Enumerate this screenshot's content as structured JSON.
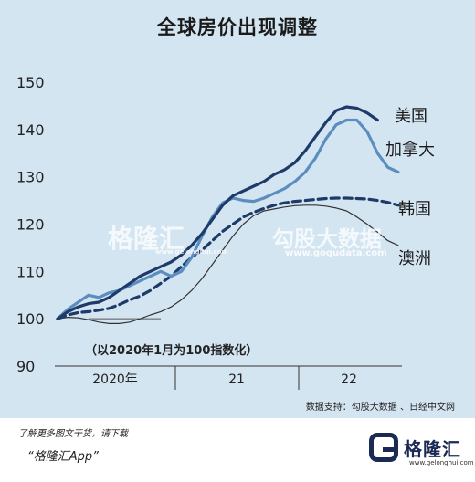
{
  "header": {
    "title": "全球房价出现调整"
  },
  "chart_data": {
    "type": "line",
    "title": "全球房价出现调整",
    "annotation": "（以2020年1月为100指数化）",
    "xlabel": "",
    "ylabel": "",
    "x_tick_labels": [
      "2020年",
      "21",
      "22"
    ],
    "ylim": [
      90,
      150
    ],
    "yticks": [
      90,
      100,
      110,
      120,
      130,
      140,
      150
    ],
    "grid": false,
    "legend": "inline-right",
    "x": [
      "2020-01",
      "2020-02",
      "2020-03",
      "2020-04",
      "2020-05",
      "2020-06",
      "2020-07",
      "2020-08",
      "2020-09",
      "2020-10",
      "2020-11",
      "2020-12",
      "2021-01",
      "2021-02",
      "2021-03",
      "2021-04",
      "2021-05",
      "2021-06",
      "2021-07",
      "2021-08",
      "2021-09",
      "2021-10",
      "2021-11",
      "2021-12",
      "2022-01",
      "2022-02",
      "2022-03",
      "2022-04",
      "2022-05",
      "2022-06",
      "2022-07",
      "2022-08",
      "2022-09",
      "2022-10"
    ],
    "series": [
      {
        "name": "美国",
        "color": "#1e3a68",
        "style": "solid-thick",
        "values": [
          100,
          101.5,
          102.5,
          103.2,
          103.5,
          104.5,
          106.0,
          107.5,
          109.0,
          110.0,
          111.0,
          112.0,
          113.5,
          115.5,
          118.0,
          121.0,
          124.0,
          126.0,
          127.0,
          128.0,
          129.0,
          130.5,
          131.5,
          133.0,
          135.5,
          138.5,
          141.5,
          144.0,
          144.8,
          144.5,
          143.5,
          142.0,
          null,
          null
        ]
      },
      {
        "name": "加拿大",
        "color": "#5b8dbf",
        "style": "solid-thick",
        "values": [
          100,
          102.0,
          103.5,
          105.0,
          104.5,
          105.5,
          106.0,
          107.0,
          108.0,
          109.0,
          110.0,
          109.0,
          110.0,
          113.0,
          117.5,
          121.5,
          124.5,
          125.5,
          125.0,
          124.8,
          125.5,
          126.5,
          127.5,
          129.0,
          131.0,
          134.0,
          138.0,
          141.0,
          142.0,
          142.0,
          139.5,
          135.0,
          132.0,
          131.0
        ]
      },
      {
        "name": "韩国",
        "color": "#1e3a68",
        "style": "dashed",
        "values": [
          100,
          100.8,
          101.3,
          101.5,
          101.8,
          102.2,
          103.0,
          104.0,
          104.8,
          106.0,
          107.5,
          109.0,
          111.0,
          113.0,
          114.5,
          116.5,
          118.5,
          120.0,
          121.5,
          122.5,
          123.3,
          124.0,
          124.5,
          124.8,
          125.0,
          125.2,
          125.4,
          125.5,
          125.5,
          125.4,
          125.3,
          125.0,
          124.6,
          124.0
        ]
      },
      {
        "name": "澳洲",
        "color": "#333333",
        "style": "solid-thin",
        "values": [
          100,
          100.3,
          100.2,
          99.8,
          99.3,
          99.0,
          99.0,
          99.3,
          100.0,
          100.8,
          101.5,
          102.5,
          104.0,
          106.0,
          108.5,
          111.5,
          114.5,
          117.5,
          120.0,
          121.8,
          122.8,
          123.2,
          123.6,
          123.9,
          124.0,
          124.0,
          123.8,
          123.4,
          122.8,
          121.5,
          120.0,
          118.3,
          116.5,
          115.5
        ]
      }
    ]
  },
  "watermark": {
    "logo_text": "格隆汇",
    "logo_url": "www.gelonghui.com",
    "data_text": "勾股大数据",
    "data_url": "www.gogudata.com"
  },
  "source": "数据支持：勾股大数据 、日经中文网",
  "footer": {
    "line1": "了解更多图文干货，请下载",
    "line2": "“格隆汇App”",
    "logo_name": "格隆汇",
    "logo_url": "www.gelonghui.com"
  }
}
